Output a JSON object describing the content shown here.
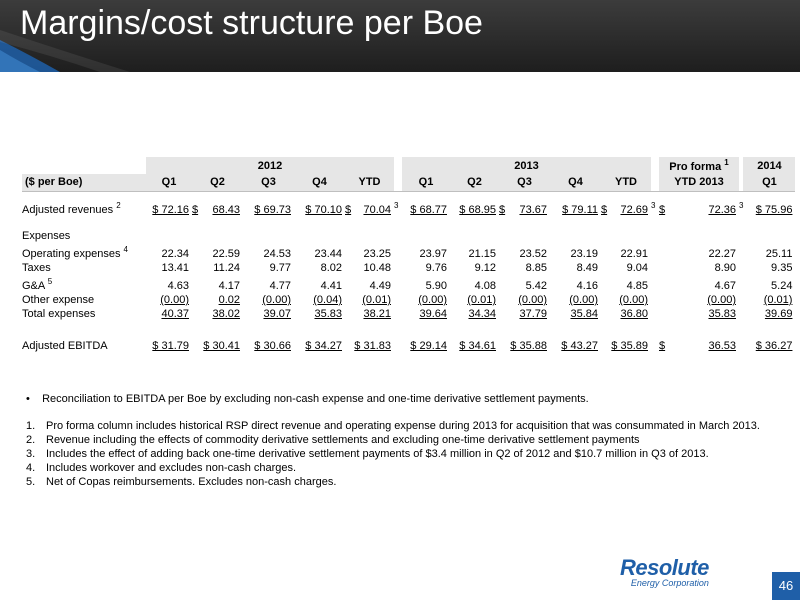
{
  "header": {
    "title": "Margins/cost structure per Boe"
  },
  "table": {
    "year_headers": {
      "y2012": "2012",
      "y2013": "2013",
      "proforma": "Pro forma",
      "proforma_sup": "1",
      "y2014": "2014"
    },
    "col_label": "($ per Boe)",
    "quarters": [
      "Q1",
      "Q2",
      "Q3",
      "Q4",
      "YTD",
      "Q1",
      "Q2",
      "Q3",
      "Q4",
      "YTD",
      "YTD 2013",
      "Q1"
    ],
    "adjusted_revenues": {
      "label": "Adjusted revenues",
      "label_sup": "2",
      "values": [
        "$ 72.16",
        "$",
        "68.43",
        "$ 69.73",
        "$ 70.10",
        "$",
        "70.04",
        "3",
        "$ 68.77",
        "$ 68.95",
        "$",
        "73.67",
        "$ 79.11",
        "$",
        "72.69",
        "3",
        "$",
        "72.36",
        "3",
        "$ 75.96"
      ]
    },
    "expenses_label": "Expenses",
    "rows": [
      {
        "label": "Operating expenses",
        "sup": "4",
        "values": [
          "22.34",
          "22.59",
          "24.53",
          "23.44",
          "23.25",
          "23.97",
          "21.15",
          "23.52",
          "23.19",
          "22.91",
          "22.27",
          "25.11"
        ]
      },
      {
        "label": "Taxes",
        "sup": "",
        "values": [
          "13.41",
          "11.24",
          "9.77",
          "8.02",
          "10.48",
          "9.76",
          "9.12",
          "8.85",
          "8.49",
          "9.04",
          "8.90",
          "9.35"
        ]
      },
      {
        "label": "G&A",
        "sup": "5",
        "values": [
          "4.63",
          "4.17",
          "4.77",
          "4.41",
          "4.49",
          "5.90",
          "4.08",
          "5.42",
          "4.16",
          "4.85",
          "4.67",
          "5.24"
        ]
      },
      {
        "label": "Other expense",
        "sup": "",
        "values": [
          "(0.00)",
          "0.02",
          "(0.00)",
          "(0.04)",
          "(0.01)",
          "(0.00)",
          "(0.01)",
          "(0.00)",
          "(0.00)",
          "(0.00)",
          "(0.00)",
          "(0.01)"
        ]
      },
      {
        "label": "Total expenses",
        "sup": "",
        "values": [
          "40.37",
          "38.02",
          "39.07",
          "35.83",
          "38.21",
          "39.64",
          "34.34",
          "37.79",
          "35.84",
          "36.80",
          "35.83",
          "39.69"
        ]
      }
    ],
    "ebitda": {
      "label": "Adjusted EBITDA",
      "values": [
        "$ 31.79",
        "$ 30.41",
        "$ 30.66",
        "$ 34.27",
        "$ 31.83",
        "$ 29.14",
        "$ 34.61",
        "$ 35.88",
        "$ 43.27",
        "$ 35.89",
        "$",
        "36.53",
        "$ 36.27"
      ]
    }
  },
  "bullet": "Reconciliation to EBITDA per Boe by excluding non-cash expense and one-time derivative settlement payments.",
  "notes": [
    {
      "num": "1.",
      "text": "Pro forma column includes historical RSP direct revenue and operating expense during 2013 for acquisition that was consummated in March 2013."
    },
    {
      "num": "2.",
      "text": "Revenue including the effects of commodity derivative settlements and excluding one-time derivative settlement payments"
    },
    {
      "num": "3.",
      "text": "Includes the effect of adding back one-time derivative settlement payments of $3.4 million in Q2 of 2012 and $10.7 million in Q3 of 2013."
    },
    {
      "num": "4.",
      "text": "Includes workover and excludes non-cash charges."
    },
    {
      "num": "5.",
      "text": "Net of Copas reimbursements. Excludes non-cash charges."
    }
  ],
  "logo": {
    "name": "Resolute",
    "sub": "Energy Corporation"
  },
  "page_number": "46",
  "colors": {
    "banner": "#2a2a2a",
    "brand_blue": "#1f5fa8",
    "header_fill": "#e6e6e6"
  }
}
